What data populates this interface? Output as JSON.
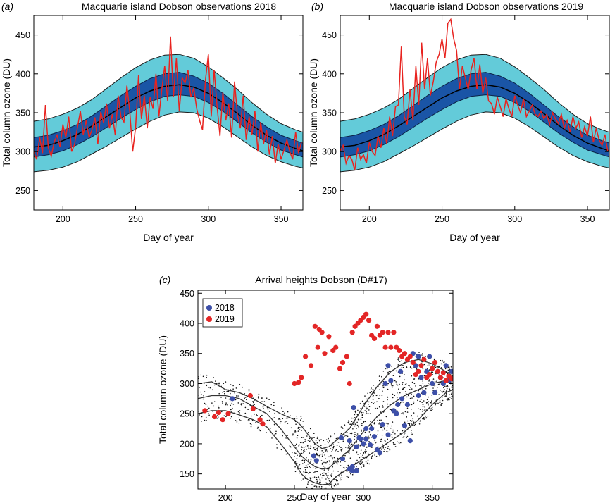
{
  "chart_data": [
    {
      "panel": "(a)",
      "type": "line",
      "title": "Macquarie island Dobson observations 2018",
      "xlabel": "Day of year",
      "ylabel": "Total column ozone (DU)",
      "xlim": [
        180,
        365
      ],
      "ylim": [
        225,
        475
      ],
      "xticks": [
        200,
        250,
        300,
        350
      ],
      "yticks": [
        250,
        300,
        350,
        400,
        450
      ],
      "grid": false,
      "colors": {
        "outer_band": "#63cbd9",
        "inner_band": "#1a55a6",
        "observations": "#e8231f",
        "median": "#000000"
      },
      "climatology": {
        "x": [
          180,
          190,
          200,
          210,
          220,
          230,
          240,
          250,
          260,
          270,
          280,
          290,
          300,
          310,
          320,
          330,
          340,
          350,
          360,
          365
        ],
        "outer_low": [
          274,
          276,
          280,
          287,
          297,
          307,
          318,
          329,
          339,
          347,
          351,
          350,
          343,
          332,
          319,
          306,
          295,
          287,
          281,
          279
        ],
        "inner_low": [
          293,
          296,
          301,
          309,
          319,
          331,
          343,
          354,
          364,
          371,
          373,
          371,
          363,
          352,
          338,
          324,
          312,
          302,
          296,
          293
        ],
        "median": [
          306,
          308,
          314,
          322,
          333,
          345,
          357,
          369,
          378,
          384,
          386,
          383,
          375,
          363,
          349,
          334,
          321,
          311,
          304,
          301
        ],
        "inner_high": [
          318,
          321,
          327,
          335,
          346,
          359,
          372,
          384,
          394,
          400,
          402,
          397,
          388,
          375,
          360,
          345,
          332,
          321,
          314,
          311
        ],
        "outer_high": [
          339,
          342,
          348,
          356,
          367,
          381,
          395,
          408,
          418,
          424,
          425,
          420,
          409,
          395,
          380,
          363,
          348,
          336,
          328,
          325
        ]
      },
      "observations": {
        "name": "",
        "x": [
          180,
          182,
          184,
          186,
          188,
          190,
          192,
          194,
          196,
          198,
          200,
          202,
          204,
          206,
          208,
          210,
          212,
          214,
          216,
          218,
          220,
          222,
          224,
          226,
          228,
          230,
          232,
          234,
          236,
          238,
          240,
          242,
          244,
          246,
          248,
          250,
          252,
          254,
          256,
          258,
          260,
          262,
          264,
          266,
          268,
          270,
          272,
          274,
          276,
          278,
          280,
          282,
          284,
          286,
          288,
          290,
          292,
          294,
          296,
          298,
          300,
          302,
          304,
          306,
          308,
          310,
          312,
          314,
          316,
          318,
          320,
          322,
          324,
          326,
          328,
          330,
          332,
          334,
          336,
          338,
          340,
          342,
          344,
          346,
          348,
          350,
          352,
          354,
          356,
          358,
          360,
          362,
          364
        ],
        "y": [
          300,
          290,
          318,
          298,
          360,
          305,
          294,
          312,
          321,
          306,
          335,
          318,
          345,
          300,
          309,
          331,
          352,
          322,
          340,
          318,
          328,
          344,
          310,
          351,
          337,
          362,
          330,
          348,
          321,
          372,
          344,
          338,
          385,
          351,
          300,
          331,
          398,
          342,
          372,
          330,
          370,
          355,
          400,
          345,
          380,
          410,
          365,
          448,
          370,
          420,
          352,
          395,
          388,
          405,
          370,
          382,
          355,
          340,
          328,
          392,
          425,
          345,
          405,
          358,
          320,
          376,
          340,
          362,
          318,
          390,
          347,
          330,
          372,
          315,
          345,
          322,
          352,
          300,
          338,
          310,
          328,
          296,
          320,
          285,
          310,
          290,
          302,
          315,
          300,
          290,
          325,
          298,
          312
        ]
      }
    },
    {
      "panel": "(b)",
      "type": "line",
      "title": "Macquarie island Dobson observations 2019",
      "xlabel": "Day of year",
      "ylabel": "Total column ozone (DU)",
      "xlim": [
        180,
        365
      ],
      "ylim": [
        225,
        475
      ],
      "xticks": [
        200,
        250,
        300,
        350
      ],
      "yticks": [
        250,
        300,
        350,
        400,
        450
      ],
      "grid": false,
      "observations": {
        "name": "",
        "x": [
          180,
          182,
          184,
          186,
          188,
          190,
          192,
          194,
          196,
          198,
          200,
          202,
          204,
          206,
          208,
          210,
          212,
          214,
          216,
          218,
          220,
          222,
          224,
          226,
          228,
          230,
          232,
          234,
          236,
          238,
          240,
          242,
          244,
          246,
          248,
          250,
          252,
          254,
          256,
          258,
          260,
          262,
          264,
          266,
          268,
          270,
          272,
          274,
          276,
          278,
          280,
          282,
          284,
          286,
          288,
          290,
          292,
          294,
          296,
          298,
          300,
          302,
          304,
          306,
          308,
          310,
          312,
          314,
          316,
          318,
          320,
          322,
          324,
          326,
          328,
          330,
          332,
          334,
          336,
          338,
          340,
          342,
          344,
          346,
          348,
          350,
          352,
          354,
          356,
          358,
          360,
          362,
          364
        ],
        "y": [
          300,
          308,
          285,
          295,
          290,
          276,
          305,
          290,
          296,
          285,
          312,
          300,
          295,
          320,
          305,
          330,
          310,
          345,
          320,
          358,
          360,
          435,
          345,
          335,
          380,
          340,
          410,
          360,
          440,
          380,
          420,
          372,
          390,
          415,
          425,
          445,
          420,
          465,
          470,
          445,
          430,
          380,
          410,
          395,
          380,
          405,
          420,
          380,
          412,
          375,
          395,
          365,
          362,
          348,
          370,
          358,
          345,
          368,
          355,
          345,
          372,
          360,
          350,
          368,
          345,
          352,
          360,
          348,
          345,
          352,
          342,
          348,
          335,
          350,
          342,
          336,
          348,
          330,
          340,
          325,
          345,
          330,
          338,
          318,
          332,
          320,
          345,
          312,
          330,
          315,
          308,
          322,
          300
        ]
      }
    },
    {
      "panel": "(c)",
      "type": "scatter",
      "title": "Arrival heights Dobson (D#17)",
      "xlabel": "Day of year",
      "ylabel": "Total column ozone (DU)",
      "xlim": [
        180,
        365
      ],
      "ylim": [
        125,
        455
      ],
      "xticks": [
        200,
        250,
        300,
        350
      ],
      "yticks": [
        150,
        200,
        250,
        300,
        350,
        400,
        450
      ],
      "grid": false,
      "legend": {
        "placement": "top-left",
        "entries": [
          "2018",
          "2019"
        ]
      },
      "colors": {
        "2018": "#3d4fa8",
        "2019": "#e32626",
        "climatology": "#000000"
      },
      "climatology": {
        "x": [
          180,
          190,
          200,
          210,
          220,
          230,
          240,
          250,
          255,
          260,
          265,
          270,
          275,
          280,
          290,
          300,
          310,
          320,
          330,
          340,
          350,
          360,
          365
        ],
        "low": [
          250,
          255,
          255,
          248,
          240,
          228,
          200,
          170,
          150,
          140,
          135,
          132,
          133,
          145,
          160,
          175,
          190,
          205,
          220,
          240,
          265,
          285,
          290
        ],
        "median": [
          275,
          280,
          280,
          275,
          262,
          250,
          225,
          195,
          180,
          170,
          162,
          158,
          160,
          170,
          190,
          220,
          245,
          265,
          280,
          290,
          300,
          305,
          307
        ],
        "high": [
          300,
          303,
          290,
          285,
          275,
          262,
          250,
          240,
          230,
          215,
          200,
          192,
          195,
          205,
          225,
          262,
          295,
          320,
          335,
          340,
          333,
          320,
          312
        ]
      },
      "series": [
        {
          "name": "2018",
          "x": [
            205,
            264,
            266,
            284,
            285,
            290,
            290,
            292,
            292,
            293,
            295,
            295,
            297,
            298,
            300,
            302,
            302,
            305,
            306,
            308,
            310,
            312,
            314,
            316,
            318,
            318,
            320,
            322,
            324,
            325,
            327,
            328,
            330,
            332,
            334,
            336,
            338,
            340,
            340,
            342,
            344,
            346,
            348,
            350,
            352,
            354,
            356,
            358,
            360,
            362,
            364
          ],
          "y": [
            275,
            180,
            172,
            210,
            175,
            205,
            158,
            162,
            155,
            260,
            155,
            195,
            210,
            208,
            200,
            208,
            225,
            198,
            225,
            212,
            190,
            185,
            232,
            300,
            215,
            330,
            305,
            255,
            250,
            265,
            320,
            275,
            230,
            265,
            205,
            350,
            330,
            280,
            345,
            310,
            285,
            320,
            345,
            300,
            285,
            320,
            310,
            300,
            330,
            305,
            320
          ]
        },
        {
          "name": "2019",
          "x": [
            185,
            192,
            195,
            198,
            202,
            218,
            220,
            225,
            227,
            250,
            253,
            255,
            258,
            262,
            265,
            267,
            268,
            270,
            272,
            275,
            278,
            280,
            283,
            285,
            288,
            290,
            292,
            294,
            296,
            298,
            300,
            302,
            304,
            306,
            308,
            310,
            312,
            314,
            316,
            318,
            320,
            322,
            324,
            326,
            328,
            330,
            332,
            334,
            336,
            338,
            340,
            342,
            344,
            346,
            348,
            350,
            352,
            354,
            356,
            358,
            360,
            362,
            364
          ],
          "y": [
            255,
            245,
            252,
            240,
            250,
            280,
            258,
            240,
            233,
            300,
            302,
            310,
            345,
            330,
            395,
            360,
            390,
            385,
            350,
            378,
            355,
            360,
            325,
            335,
            345,
            300,
            385,
            395,
            400,
            405,
            410,
            415,
            405,
            380,
            375,
            395,
            380,
            385,
            360,
            385,
            360,
            385,
            360,
            355,
            345,
            350,
            340,
            345,
            335,
            315,
            320,
            330,
            340,
            310,
            315,
            325,
            335,
            320,
            310,
            318,
            305,
            312,
            308
          ]
        }
      ],
      "background_points": {
        "name": "",
        "color": "#000000"
      }
    }
  ]
}
